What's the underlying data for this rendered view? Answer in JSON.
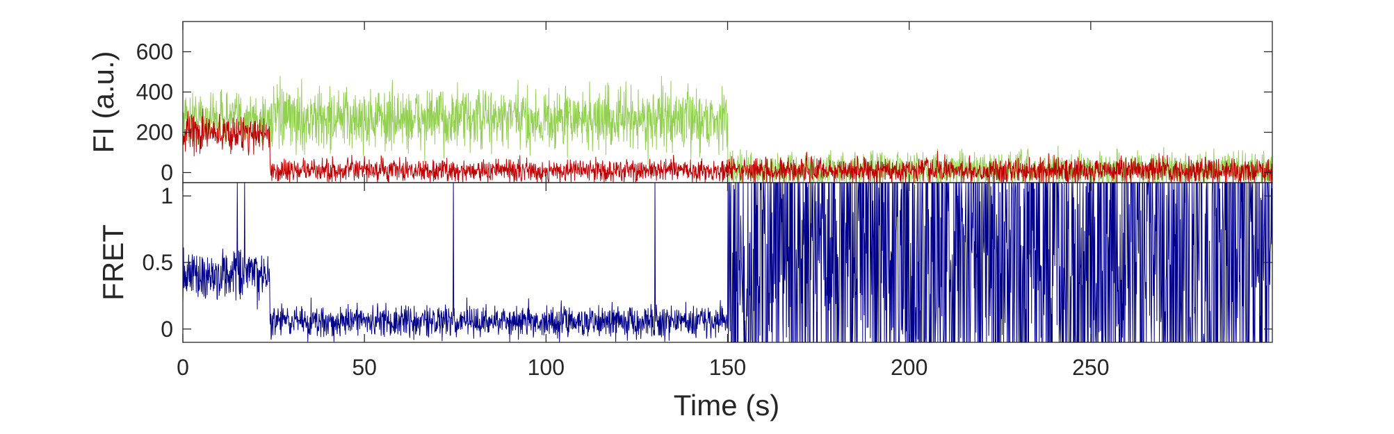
{
  "chart_data": [
    {
      "type": "line",
      "panel": "top",
      "ylabel": "FI (a.u.)",
      "xlabel": "",
      "xlim": [
        0,
        300
      ],
      "ylim": [
        -50,
        750
      ],
      "yticks": [
        0,
        200,
        400,
        600
      ],
      "xticks": [
        0,
        50,
        100,
        150,
        200,
        250
      ],
      "grid": false,
      "series": [
        {
          "color": "#92d050",
          "segments": [
            {
              "x0": 0,
              "x1": 24,
              "mean": 270,
              "noise": 65
            },
            {
              "x0": 24,
              "x1": 150,
              "mean": 265,
              "noise": 75
            },
            {
              "x0": 150,
              "x1": 300,
              "mean": 15,
              "noise": 42
            }
          ]
        },
        {
          "color": "#c00000",
          "segments": [
            {
              "x0": 0,
              "x1": 24,
              "mean": 195,
              "noise": 45
            },
            {
              "x0": 24,
              "x1": 150,
              "mean": 10,
              "noise": 28
            },
            {
              "x0": 150,
              "x1": 300,
              "mean": 10,
              "noise": 32
            }
          ]
        }
      ]
    },
    {
      "type": "line",
      "panel": "bottom",
      "ylabel": "FRET",
      "xlabel": "Time (s)",
      "xlim": [
        0,
        300
      ],
      "ylim": [
        -0.1,
        1.1
      ],
      "yticks": [
        0,
        0.5,
        1
      ],
      "xticks": [
        0,
        50,
        100,
        150,
        200,
        250
      ],
      "grid": false,
      "series": [
        {
          "color": "#00008b",
          "segments": [
            {
              "x0": 0,
              "x1": 24,
              "mean": 0.4,
              "noise": 0.1
            },
            {
              "x0": 24,
              "x1": 150,
              "mean": 0.06,
              "noise": 0.06
            },
            {
              "x0": 150,
              "x1": 300,
              "mean": 0.5,
              "noise": 0.55
            }
          ],
          "spikes": [
            {
              "x": 15,
              "y": 1.1
            },
            {
              "x": 17,
              "y": 1.1
            },
            {
              "x": 74.5,
              "y": 1.1
            },
            {
              "x": 130,
              "y": 1.1
            }
          ]
        }
      ]
    }
  ]
}
